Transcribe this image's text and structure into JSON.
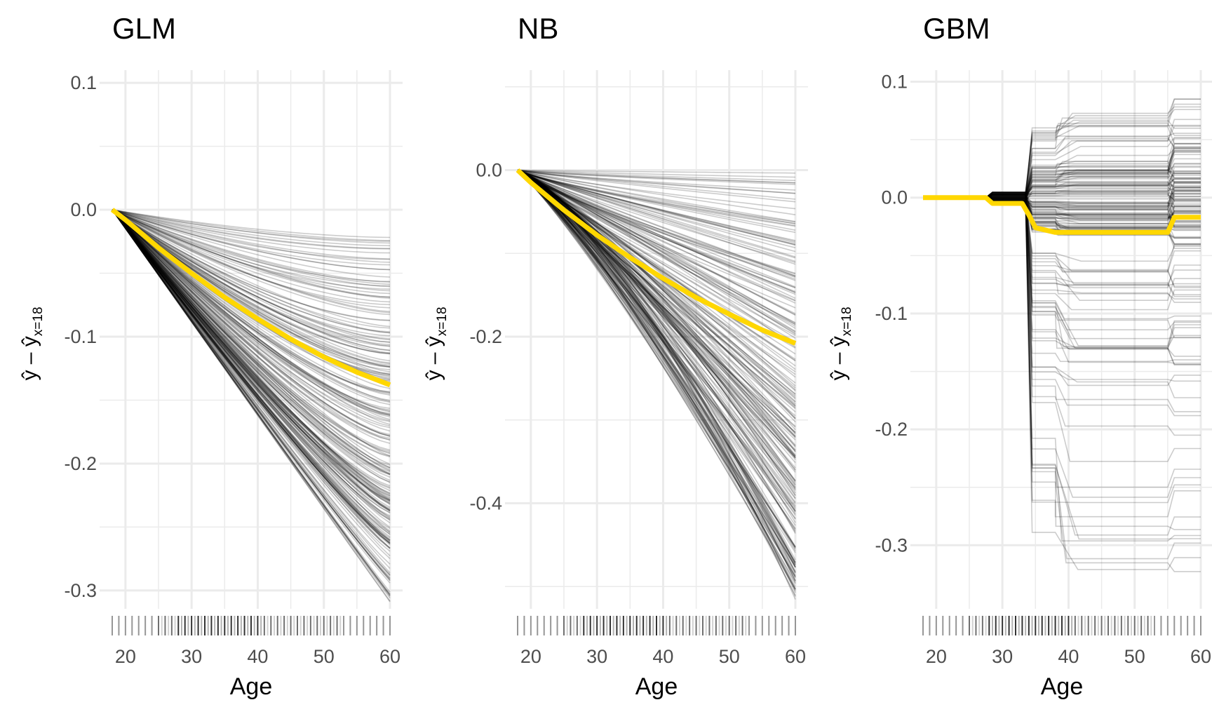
{
  "chart_data": [
    {
      "type": "line",
      "title": "GLM",
      "xlabel": "Age",
      "ylabel": {
        "main": "ŷ – ŷ",
        "sub": "x=18"
      },
      "xlim": [
        18,
        60
      ],
      "ylim": [
        -0.31,
        0.11
      ],
      "x_ticks": [
        20,
        30,
        40,
        50,
        60
      ],
      "y_ticks": [
        0.1,
        0.0,
        -0.1,
        -0.2,
        -0.3
      ],
      "y_tick_labels": [
        "0.1",
        "0.0",
        "-0.1",
        "-0.2",
        "-0.3"
      ],
      "grid": true,
      "series": [
        {
          "role": "average",
          "color": "#FFD700",
          "x": [
            18,
            20,
            25,
            30,
            35,
            40,
            45,
            50,
            55,
            60
          ],
          "values": [
            0.0,
            -0.008,
            -0.03,
            -0.05,
            -0.069,
            -0.086,
            -0.102,
            -0.116,
            -0.128,
            -0.138
          ]
        },
        {
          "role": "ice-min",
          "x": [
            18,
            60
          ],
          "values": [
            0.0,
            -0.31
          ]
        },
        {
          "role": "ice-max",
          "x": [
            18,
            60
          ],
          "values": [
            0.0,
            -0.015
          ]
        }
      ]
    },
    {
      "type": "line",
      "title": "NB",
      "xlabel": "Age",
      "ylabel": {
        "main": "ŷ – ŷ",
        "sub": "x=18"
      },
      "xlim": [
        18,
        60
      ],
      "ylim": [
        -0.52,
        0.12
      ],
      "x_ticks": [
        20,
        30,
        40,
        50,
        60
      ],
      "y_ticks": [
        0.0,
        -0.2,
        -0.4
      ],
      "y_tick_labels": [
        "0.0",
        "-0.2",
        "-0.4"
      ],
      "grid": true,
      "series": [
        {
          "role": "average",
          "color": "#FFD700",
          "x": [
            18,
            20,
            25,
            30,
            35,
            40,
            45,
            50,
            55,
            60
          ],
          "values": [
            0.0,
            -0.015,
            -0.048,
            -0.078,
            -0.105,
            -0.13,
            -0.153,
            -0.173,
            -0.192,
            -0.208
          ]
        },
        {
          "role": "ice-min",
          "x": [
            18,
            60
          ],
          "values": [
            0.0,
            -0.52
          ]
        },
        {
          "role": "ice-max",
          "x": [
            18,
            60
          ],
          "values": [
            0.0,
            0.0
          ]
        }
      ]
    },
    {
      "type": "line",
      "title": "GBM",
      "xlabel": "Age",
      "ylabel": {
        "main": "ŷ – ŷ",
        "sub": "x=18"
      },
      "xlim": [
        18,
        60
      ],
      "ylim": [
        -0.35,
        0.11
      ],
      "x_ticks": [
        20,
        30,
        40,
        50,
        60
      ],
      "y_ticks": [
        0.1,
        0.0,
        -0.1,
        -0.2,
        -0.3
      ],
      "y_tick_labels": [
        "0.1",
        "0.0",
        "-0.1",
        "-0.2",
        "-0.3"
      ],
      "grid": true,
      "series": [
        {
          "role": "average",
          "color": "#FFD700",
          "x": [
            18,
            27.5,
            28.5,
            33,
            34,
            35,
            38,
            54,
            55,
            56,
            60
          ],
          "values": [
            0.0,
            0.0,
            -0.005,
            -0.005,
            -0.015,
            -0.026,
            -0.03,
            -0.03,
            -0.03,
            -0.017,
            -0.017
          ]
        },
        {
          "role": "ice-min",
          "x": [
            18,
            60
          ],
          "values": [
            0.0,
            -0.345
          ]
        },
        {
          "role": "ice-max",
          "x": [
            18,
            60
          ],
          "values": [
            0.0,
            0.085
          ]
        }
      ]
    }
  ]
}
